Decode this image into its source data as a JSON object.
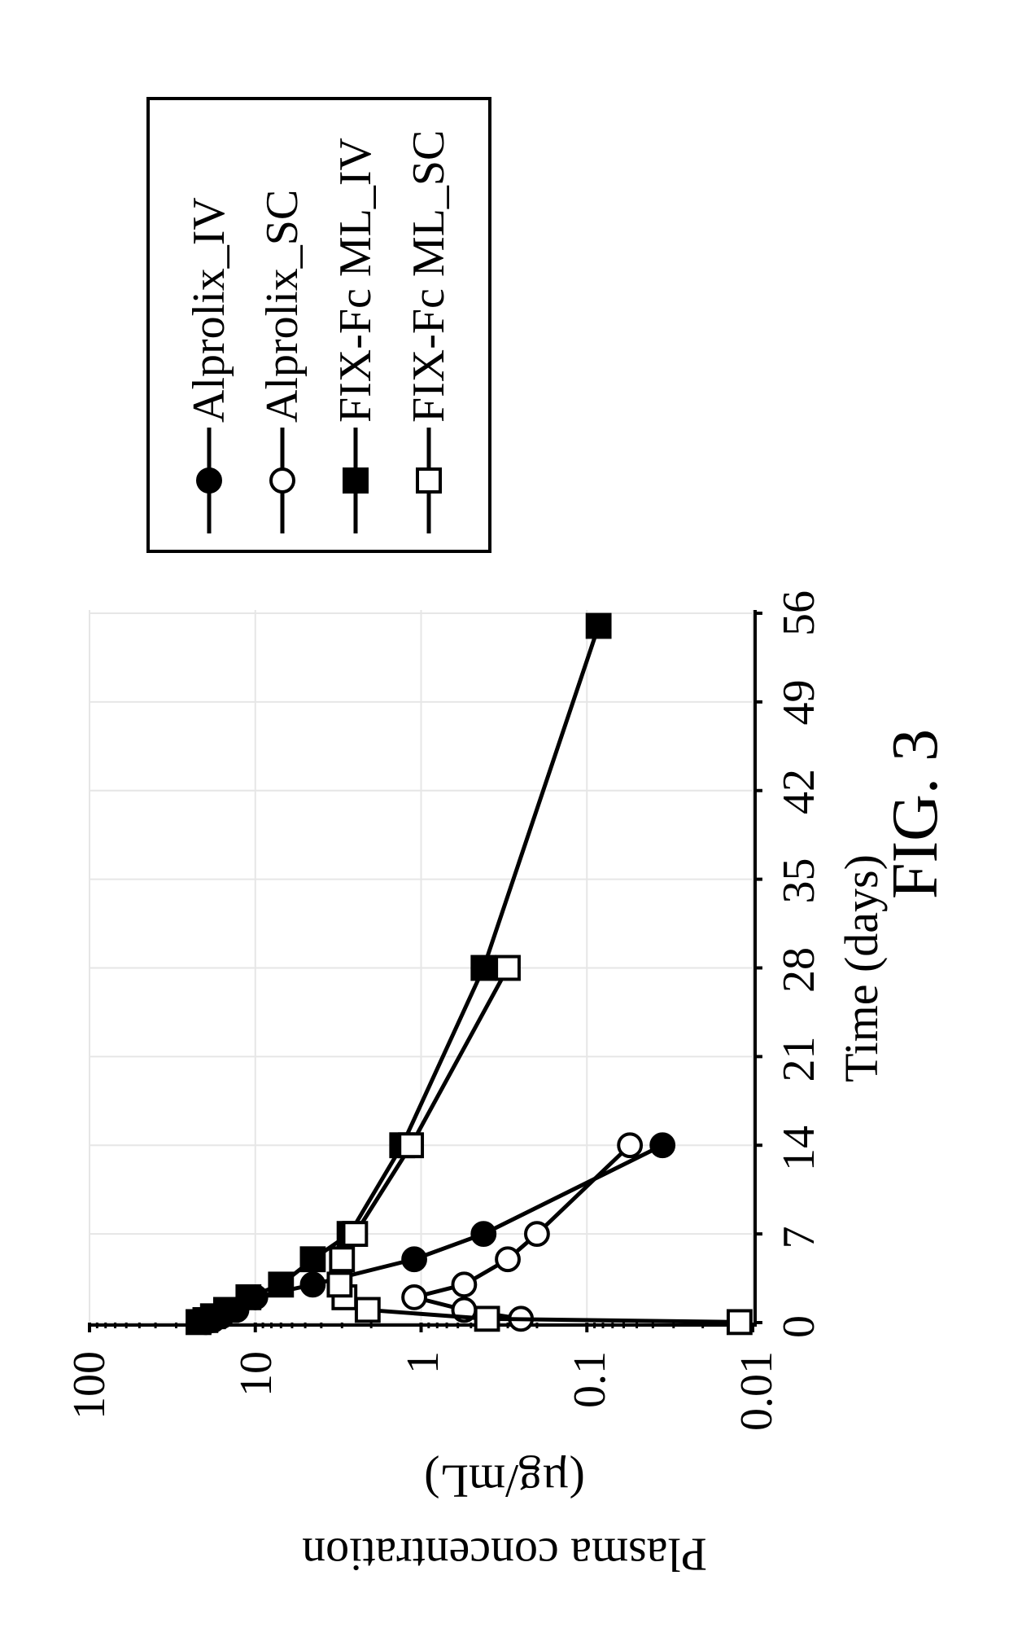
{
  "figure": {
    "caption": "FIG. 3",
    "caption_fontsize": 80
  },
  "chart": {
    "type": "line",
    "y_title_outer": "Plasma concentration",
    "y_title_inner": "(µg/mL)",
    "x_title": "Time (days)",
    "title_fontsize": 58,
    "label_fontsize": 56,
    "background_color": "#ffffff",
    "grid_color": "#e6e6e6",
    "axis_color": "#000000",
    "line_color": "#000000",
    "line_width": 5,
    "marker_size": 28,
    "marker_stroke": 4,
    "x": {
      "lim": [
        0,
        56
      ],
      "ticks": [
        0,
        7,
        14,
        21,
        28,
        35,
        42,
        49,
        56
      ],
      "tick_labels": [
        "0",
        "7",
        "14",
        "21",
        "28",
        "35",
        "42",
        "49",
        "56"
      ],
      "scale": "linear"
    },
    "y": {
      "lim": [
        0.01,
        100
      ],
      "scale": "log",
      "base": 10,
      "ticks": [
        0.01,
        0.1,
        1,
        10,
        100
      ],
      "tick_labels": [
        "0.01",
        "0.1",
        "1",
        "10",
        "100"
      ],
      "minor_ticks_per_decade": 8
    },
    "series": [
      {
        "id": "alprolix_iv",
        "label": "Alprolix_IV",
        "marker": "circle-filled",
        "fill": "#000000",
        "stroke": "#000000",
        "x": [
          0.04,
          0.2,
          0.5,
          1,
          2,
          3,
          5,
          7,
          14
        ],
        "y": [
          20,
          18,
          16,
          13,
          10,
          4.5,
          1.1,
          0.42,
          0.035
        ]
      },
      {
        "id": "alprolix_sc",
        "label": "Alprolix_SC",
        "marker": "circle-open",
        "fill": "#ffffff",
        "stroke": "#000000",
        "x": [
          0.3,
          1,
          2,
          3,
          5,
          7,
          14
        ],
        "y": [
          0.25,
          0.55,
          1.1,
          0.55,
          0.3,
          0.2,
          0.055
        ]
      },
      {
        "id": "fixfc_ml_iv",
        "label": "FIX-Fc ML_IV",
        "marker": "square-filled",
        "fill": "#000000",
        "stroke": "#000000",
        "x": [
          0.04,
          0.2,
          0.5,
          1,
          2,
          3,
          5,
          7,
          14,
          28,
          55
        ],
        "y": [
          22,
          20,
          18,
          15,
          11,
          7,
          4.5,
          2.7,
          1.3,
          0.42,
          0.085
        ]
      },
      {
        "id": "fixfc_ml_sc",
        "label": "FIX-Fc ML_SC",
        "marker": "square-open",
        "fill": "#ffffff",
        "stroke": "#000000",
        "x": [
          0.04,
          0.3,
          1,
          2,
          3,
          5,
          7,
          14,
          28
        ],
        "y": [
          0.012,
          0.4,
          2.1,
          2.9,
          3.1,
          3.0,
          2.5,
          1.15,
          0.3
        ]
      }
    ]
  },
  "legend": {
    "border_color": "#000000",
    "items": [
      {
        "label": "Alprolix_IV",
        "series": "alprolix_iv"
      },
      {
        "label": "Alprolix_SC",
        "series": "alprolix_sc"
      },
      {
        "label": "FIX-Fc ML_IV",
        "series": "fixfc_ml_iv"
      },
      {
        "label": "FIX-Fc ML_SC",
        "series": "fixfc_ml_sc"
      }
    ]
  }
}
